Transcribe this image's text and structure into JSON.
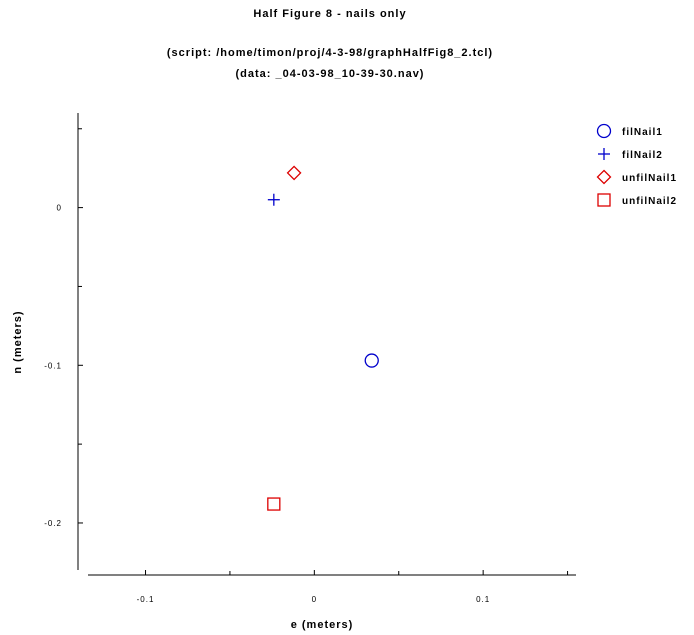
{
  "chart_data": {
    "type": "scatter",
    "title": "Half Figure 8 - nails only",
    "subtitle_lines": [
      "(script: /home/timon/proj/4-3-98/graphHalfFig8_2.tcl)",
      "(data: _04-03-98_10-39-30.nav)"
    ],
    "xlabel": "e (meters)",
    "ylabel": "n (meters)",
    "x_ticks": [
      {
        "value": -0.1,
        "label": "-0.1"
      },
      {
        "value": 0,
        "label": "0"
      },
      {
        "value": 0.1,
        "label": "0.1"
      }
    ],
    "y_ticks": [
      {
        "value": 0,
        "label": "0"
      },
      {
        "value": -0.1,
        "label": "-0.1"
      },
      {
        "value": -0.2,
        "label": "-0.2"
      }
    ],
    "x_minor": [
      -0.05,
      0.05,
      0.15
    ],
    "y_minor": [
      0.05,
      -0.05,
      -0.15
    ],
    "xlim": [
      -0.14,
      0.155
    ],
    "ylim": [
      -0.233,
      0.06
    ],
    "legend_position": "top-right",
    "series": [
      {
        "name": "filNail1",
        "marker": "circle",
        "color": "#0000cc",
        "points": [
          [
            0.034,
            -0.097
          ]
        ]
      },
      {
        "name": "filNail2",
        "marker": "plus",
        "color": "#0000cc",
        "points": [
          [
            -0.024,
            0.005
          ]
        ]
      },
      {
        "name": "unfilNail1",
        "marker": "diamond",
        "color": "#dd0000",
        "points": [
          [
            -0.012,
            0.022
          ]
        ]
      },
      {
        "name": "unfilNail2",
        "marker": "square",
        "color": "#dd0000",
        "points": [
          [
            -0.024,
            -0.188
          ]
        ]
      }
    ]
  }
}
